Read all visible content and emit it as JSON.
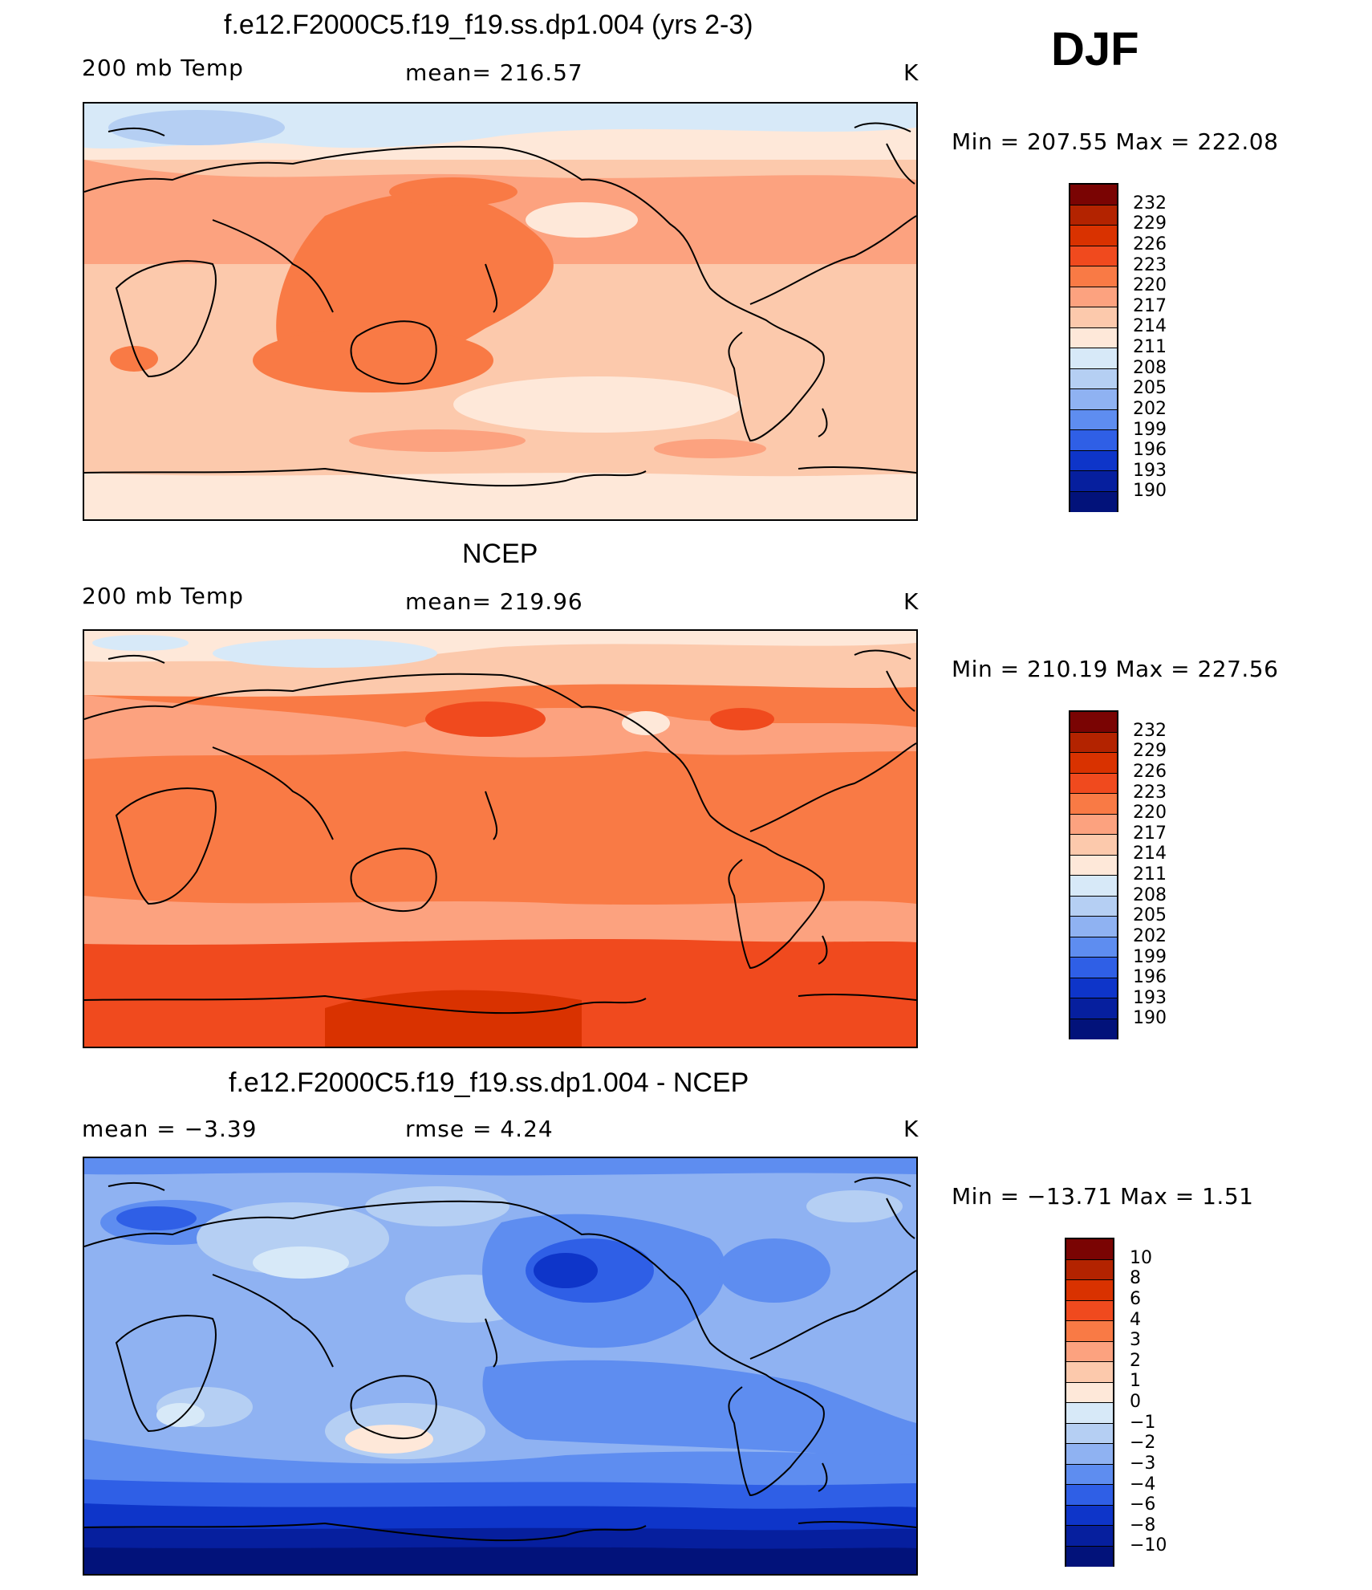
{
  "season": "DJF",
  "panels": [
    {
      "title": "f.e12.F2000C5.f19_f19.ss.dp1.004 (yrs 2-3)",
      "left_label": "200 mb Temp",
      "center_label": "mean=  216.57",
      "unit": "K",
      "minmax": "Min  =  207.55  Max  =  222.08",
      "theme": "model"
    },
    {
      "title": "NCEP",
      "left_label": "200 mb Temp",
      "center_label": "mean=  219.96",
      "unit": "K",
      "minmax": "Min  =  210.19  Max  =  227.56",
      "theme": "obs"
    },
    {
      "title": "f.e12.F2000C5.f19_f19.ss.dp1.004 - NCEP",
      "left_label": "mean  =    −3.39",
      "center_label": "rmse  =     4.24",
      "unit": "K",
      "minmax": "Min  =  −13.71  Max  =      1.51",
      "theme": "diff"
    }
  ],
  "colorbars": {
    "temp": {
      "labels": [
        "232",
        "229",
        "226",
        "223",
        "220",
        "217",
        "214",
        "211",
        "208",
        "205",
        "202",
        "199",
        "196",
        "193",
        "190"
      ]
    },
    "diff": {
      "labels": [
        "10",
        "8",
        "6",
        "4",
        "3",
        "2",
        "1",
        "0",
        "−1",
        "−2",
        "−3",
        "−4",
        "−6",
        "−8",
        "−10"
      ]
    },
    "colors": [
      "#7a0403",
      "#b32300",
      "#d93200",
      "#f04a1e",
      "#f97a45",
      "#fca27f",
      "#fcc9ac",
      "#fee8d9",
      "#d7e9f8",
      "#b5cff3",
      "#8fb2f2",
      "#5e8df0",
      "#2f5fe6",
      "#0e35c9",
      "#061f9e",
      "#02127a"
    ]
  }
}
